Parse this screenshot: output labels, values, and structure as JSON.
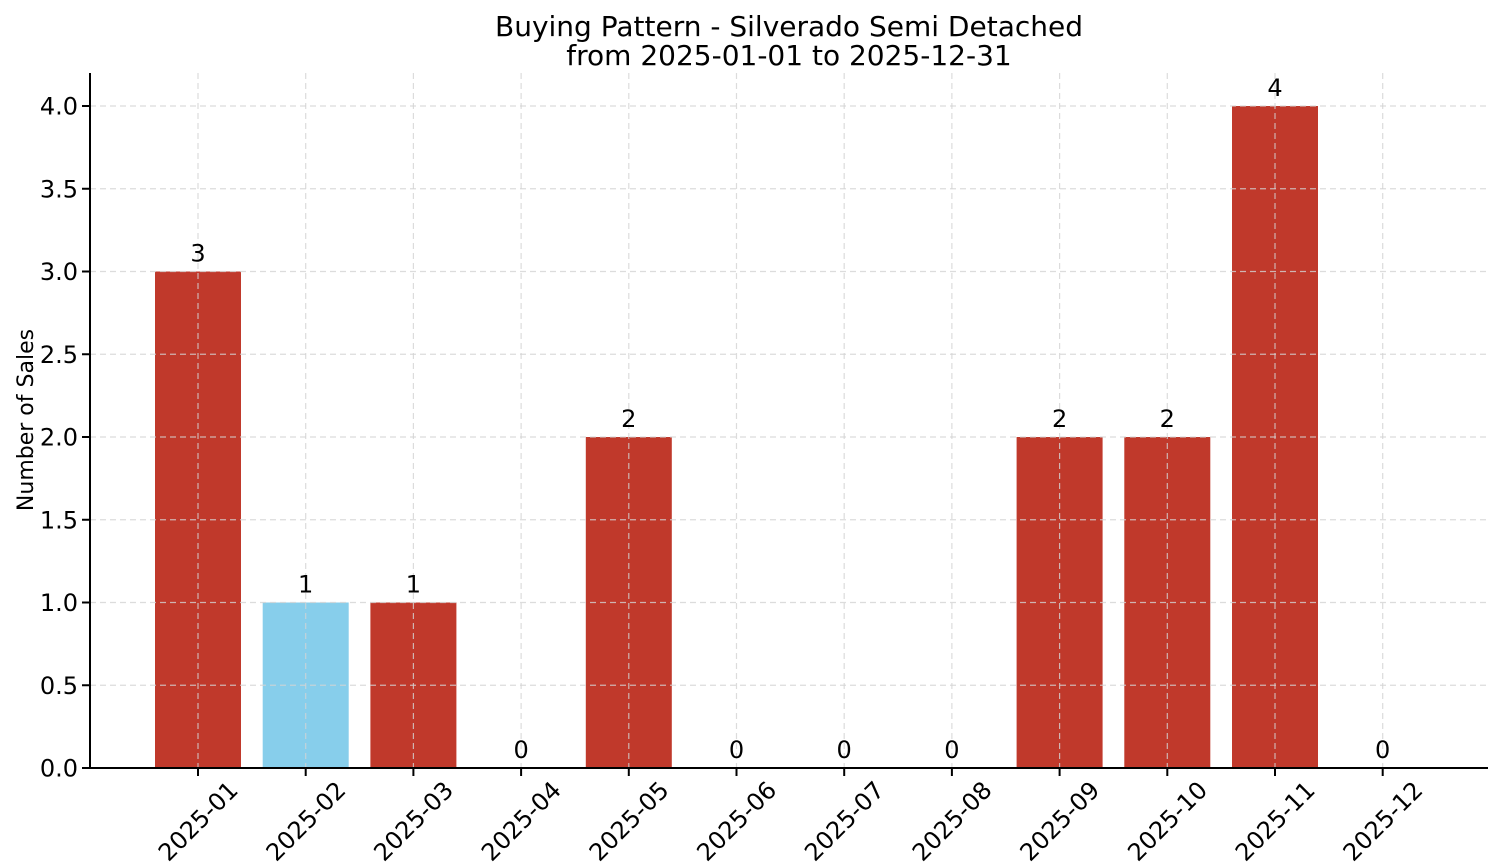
{
  "chart_data": {
    "type": "bar",
    "title": "Buying Pattern - Silverado Semi Detached",
    "subtitle": "from 2025-01-01 to 2025-12-31",
    "ylabel": "Number of Sales",
    "xlabel": "",
    "categories": [
      "2025-01",
      "2025-02",
      "2025-03",
      "2025-04",
      "2025-05",
      "2025-06",
      "2025-07",
      "2025-08",
      "2025-09",
      "2025-10",
      "2025-11",
      "2025-12"
    ],
    "values": [
      3,
      1,
      1,
      0,
      2,
      0,
      0,
      0,
      2,
      2,
      4,
      0
    ],
    "bar_value_labels": [
      "3",
      "1",
      "1",
      "0",
      "2",
      "0",
      "0",
      "0",
      "2",
      "2",
      "4",
      "0"
    ],
    "bar_colors": [
      "#c0392b",
      "#87ceeb",
      "#c0392b",
      "#c0392b",
      "#c0392b",
      "#c0392b",
      "#c0392b",
      "#c0392b",
      "#c0392b",
      "#c0392b",
      "#c0392b",
      "#c0392b"
    ],
    "highlighted_category": "2025-02",
    "yticks": [
      0.0,
      0.5,
      1.0,
      1.5,
      2.0,
      2.5,
      3.0,
      3.5,
      4.0
    ],
    "ytick_labels": [
      "0.0",
      "0.5",
      "1.0",
      "1.5",
      "2.0",
      "2.5",
      "3.0",
      "3.5",
      "4.0"
    ],
    "ylim": [
      0,
      4.2
    ],
    "grid": true,
    "grid_style": "dashed",
    "x_tick_rotation_deg": 45,
    "legend": null,
    "colors": {
      "bar_default": "#c0392b",
      "bar_highlight": "#87ceeb",
      "grid": "#d3d3d3",
      "axis": "#000000",
      "text": "#000000",
      "background": "#ffffff"
    }
  }
}
